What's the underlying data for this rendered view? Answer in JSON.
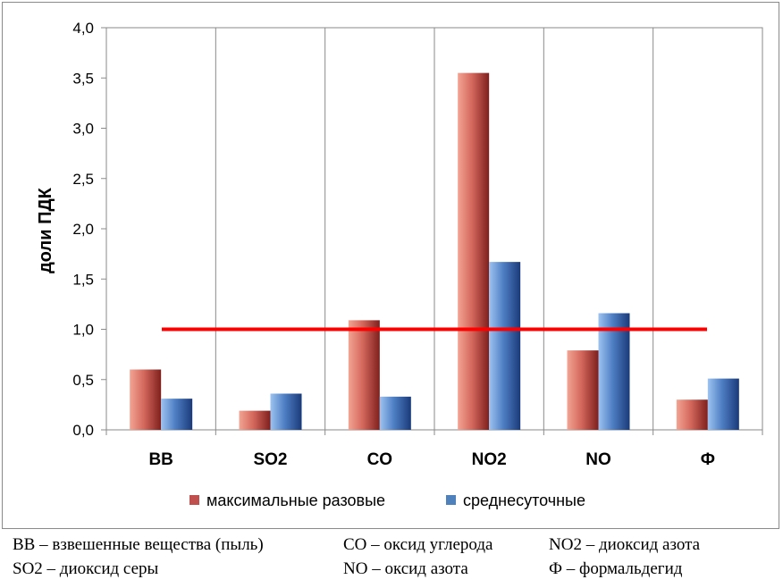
{
  "chart_data": {
    "type": "bar",
    "categories": [
      "ВВ",
      "SO2",
      "CO",
      "NO2",
      "NO",
      "Ф"
    ],
    "series": [
      {
        "name": "максимальные разовые",
        "values": [
          0.6,
          0.19,
          1.09,
          3.55,
          0.79,
          0.3
        ],
        "color": "#c0504d"
      },
      {
        "name": "среднесуточные",
        "values": [
          0.31,
          0.36,
          0.33,
          1.67,
          1.16,
          0.51
        ],
        "color": "#4f81bd"
      }
    ],
    "ylabel": "доли ПДК",
    "ylim": [
      0,
      4
    ],
    "yticks": [
      "0,0",
      "0,5",
      "1,0",
      "1,5",
      "2,0",
      "2,5",
      "3,0",
      "3,5",
      "4,0"
    ],
    "reference_line": {
      "value": 1.0,
      "color": "#ff0000"
    },
    "grid": "vertical",
    "legend_position": "bottom"
  },
  "footnotes": {
    "rows": [
      [
        "ВВ – взвешенные вещества (пыль)",
        "СО – оксид углерода",
        "NO2 – диоксид азота"
      ],
      [
        "SO2 – диоксид серы",
        "NO – оксид азота",
        "Ф – формальдегид"
      ]
    ]
  }
}
